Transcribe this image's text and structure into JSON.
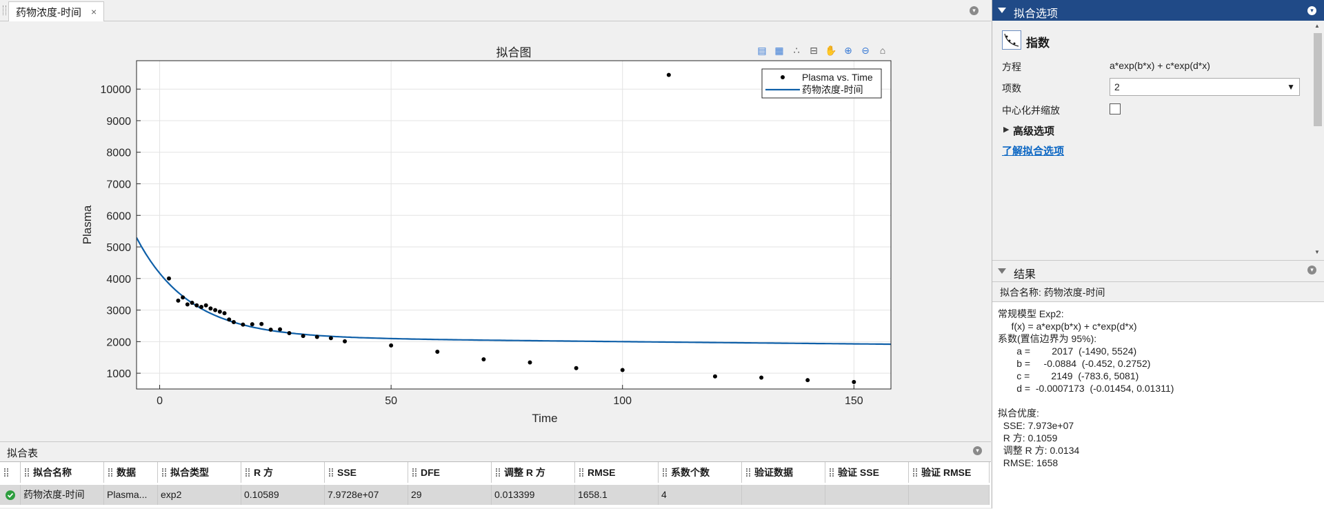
{
  "document": {
    "tab_label": "药物浓度-时间",
    "tab_close": "×"
  },
  "plot": {
    "title": "拟合图",
    "toolbar_icons": [
      "legend-icon",
      "grid-icon",
      "residuals-icon",
      "exclude-icon",
      "pan-icon",
      "zoom-in-icon",
      "zoom-out-icon",
      "home-icon"
    ]
  },
  "chart_data": {
    "type": "scatter",
    "title": "拟合图",
    "xlabel": "Time",
    "ylabel": "Plasma",
    "xlim": [
      -5,
      158
    ],
    "ylim": [
      500,
      10900
    ],
    "x_ticks": [
      0,
      50,
      100,
      150
    ],
    "y_ticks": [
      1000,
      2000,
      3000,
      4000,
      5000,
      6000,
      7000,
      8000,
      9000,
      10000
    ],
    "grid": true,
    "legend_position": "top-right",
    "series": [
      {
        "name": "Plasma vs. Time",
        "kind": "points",
        "color": "#000000",
        "x": [
          2,
          4,
          5,
          6,
          7,
          8,
          9,
          10,
          11,
          12,
          13,
          14,
          15,
          16,
          18,
          20,
          22,
          24,
          26,
          28,
          31,
          34,
          37,
          40,
          50,
          60,
          70,
          80,
          90,
          100,
          110,
          120,
          130,
          140,
          150
        ],
        "y": [
          4000,
          3300,
          3400,
          3180,
          3230,
          3150,
          3100,
          3150,
          3050,
          3000,
          2950,
          2900,
          2700,
          2620,
          2540,
          2550,
          2560,
          2380,
          2390,
          2270,
          2180,
          2150,
          2110,
          2010,
          1880,
          1680,
          1440,
          1340,
          1160,
          1100,
          10450,
          900,
          860,
          780,
          720
        ]
      },
      {
        "name": "药物浓度-时间",
        "kind": "fit",
        "color": "#0e5fa8",
        "model": "exp2",
        "a": 2017,
        "b": -0.0884,
        "c": 2149,
        "d": -0.0007173
      }
    ]
  },
  "table": {
    "title": "拟合表",
    "columns": [
      "拟合名称",
      "数据",
      "拟合类型",
      "R 方",
      "SSE",
      "DFE",
      "调整 R 方",
      "RMSE",
      "系数个数",
      "验证数据",
      "验证 SSE",
      "验证 RMSE"
    ],
    "rows": [
      [
        "药物浓度-时间",
        "Plasma...",
        "exp2",
        "0.10589",
        "7.9728e+07",
        "29",
        "0.013399",
        "1658.1",
        "4",
        "",
        "",
        ""
      ]
    ]
  },
  "options": {
    "header": "拟合选项",
    "fit_type": "指数",
    "equation_label": "方程",
    "equation_value": "a*exp(b*x) + c*exp(d*x)",
    "terms_label": "项数",
    "terms_value": "2",
    "center_label": "中心化并缩放",
    "advanced_label": "高级选项",
    "learn_link": "了解拟合选项"
  },
  "results": {
    "header": "结果",
    "fit_name_line": "拟合名称: 药物浓度-时间",
    "body": [
      "常规模型 Exp2:",
      "     f(x) = a*exp(b*x) + c*exp(d*x)",
      "系数(置信边界为 95%):",
      "       a =        2017  (-1490, 5524)",
      "       b =     -0.0884  (-0.452, 0.2752)",
      "       c =        2149  (-783.6, 5081)",
      "       d =  -0.0007173  (-0.01454, 0.01311)",
      "",
      "拟合优度:",
      "  SSE: 7.973e+07",
      "  R 方: 0.1059",
      "  调整 R 方: 0.0134",
      "  RMSE: 1658"
    ]
  }
}
